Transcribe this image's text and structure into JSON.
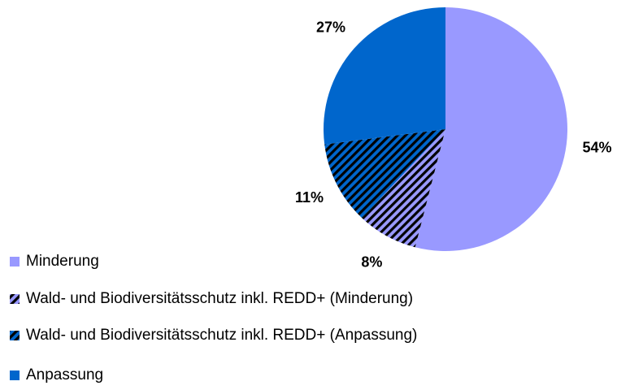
{
  "chart_data": {
    "type": "pie",
    "categories": [
      "Minderung",
      "Wald- und Biodiversitätsschutz inkl. REDD+ (Minderung)",
      "Wald- und Biodiversitätsschutz inkl. REDD+ (Anpassung)",
      "Anpassung"
    ],
    "values": [
      54,
      8,
      11,
      27
    ],
    "value_labels": [
      "54%",
      "8%",
      "11%",
      "27%"
    ],
    "colors": [
      "#9999ff",
      "#9999ff",
      "#0066cc",
      "#0066cc"
    ],
    "hatched": [
      false,
      true,
      true,
      false
    ],
    "legend": "bottom-left"
  }
}
